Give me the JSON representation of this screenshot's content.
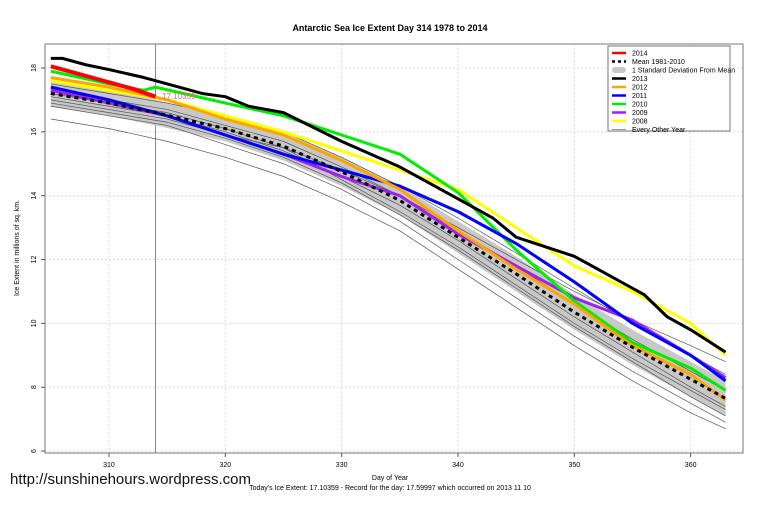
{
  "watermark": "http://sunshinehours.wordpress.com",
  "chart_data": {
    "type": "line",
    "title": "Antarctic Sea Ice Extent Day 314 1978 to 2014",
    "xlabel": "Day of Year",
    "ylabel": "Ice Extent in millions of sq. km.",
    "subtitle": "Today's Ice Extent: 17.10359  - Record for the day: 17.59997 which occurred on 2013 11 10",
    "xlim": [
      304.5,
      364.5
    ],
    "ylim": [
      5.94,
      18.75
    ],
    "xticks": [
      310,
      320,
      330,
      340,
      350,
      360
    ],
    "yticks": [
      6,
      8,
      10,
      12,
      14,
      16,
      18
    ],
    "grid": true,
    "legend_placement": "top-right",
    "current_day": 314,
    "current_value_label": "17.10359",
    "std_band": {
      "name": "1 Standard Deviation From Mean",
      "color": "#c8c8c8",
      "x": [
        305,
        310,
        314,
        320,
        325,
        330,
        335,
        340,
        345,
        350,
        355,
        360,
        363
      ],
      "lower": [
        16.8,
        16.5,
        16.2,
        15.7,
        15.1,
        14.3,
        13.4,
        12.2,
        11.0,
        9.8,
        8.7,
        7.7,
        7.1
      ],
      "upper": [
        17.6,
        17.3,
        17.0,
        16.5,
        16.0,
        15.2,
        14.3,
        13.2,
        12.1,
        10.9,
        9.8,
        8.8,
        8.2
      ]
    },
    "series": [
      {
        "name": "2014",
        "color": "#ff0000",
        "width": 4,
        "x": [
          305,
          307,
          310,
          312,
          314
        ],
        "values": [
          18.05,
          17.85,
          17.55,
          17.35,
          17.1
        ]
      },
      {
        "name": "Mean 1981-2010",
        "color": "#000000",
        "width": 3,
        "dash": true,
        "x": [
          305,
          310,
          314,
          320,
          325,
          330,
          335,
          340,
          345,
          350,
          355,
          360,
          363
        ],
        "values": [
          17.2,
          16.9,
          16.6,
          16.1,
          15.55,
          14.75,
          13.85,
          12.7,
          11.55,
          10.35,
          9.25,
          8.25,
          7.65
        ]
      },
      {
        "name": "2013",
        "color": "#000000",
        "width": 3,
        "x": [
          305,
          306,
          308,
          310,
          313,
          316,
          318,
          320,
          322,
          325,
          330,
          335,
          340,
          343,
          345,
          350,
          353,
          356,
          358,
          360,
          363
        ],
        "values": [
          18.3,
          18.3,
          18.1,
          17.95,
          17.7,
          17.4,
          17.2,
          17.1,
          16.8,
          16.6,
          15.7,
          14.9,
          13.9,
          13.3,
          12.7,
          12.1,
          11.5,
          10.9,
          10.2,
          9.8,
          9.1
        ]
      },
      {
        "name": "2012",
        "color": "#ffa500",
        "width": 3,
        "x": [
          305,
          310,
          315,
          320,
          325,
          330,
          335,
          340,
          345,
          350,
          355,
          360,
          363
        ],
        "values": [
          17.7,
          17.4,
          17.0,
          16.4,
          15.9,
          15.1,
          14.2,
          12.9,
          11.7,
          10.6,
          9.3,
          8.4,
          7.6
        ]
      },
      {
        "name": "2011",
        "color": "#0000ff",
        "width": 3,
        "x": [
          305,
          310,
          315,
          320,
          325,
          330,
          335,
          340,
          345,
          350,
          355,
          360,
          363
        ],
        "values": [
          17.4,
          17.0,
          16.5,
          15.9,
          15.3,
          14.8,
          14.3,
          13.5,
          12.5,
          11.3,
          10.0,
          9.0,
          8.2
        ]
      },
      {
        "name": "2010",
        "color": "#00ee00",
        "width": 3,
        "x": [
          305,
          310,
          313,
          314,
          320,
          325,
          330,
          335,
          340,
          345,
          350,
          355,
          360,
          363
        ],
        "values": [
          17.9,
          17.5,
          17.3,
          17.4,
          16.9,
          16.5,
          15.9,
          15.3,
          14.1,
          12.3,
          10.7,
          9.4,
          8.6,
          7.9
        ]
      },
      {
        "name": "2009",
        "color": "#a020f0",
        "width": 3,
        "x": [
          305,
          310,
          315,
          320,
          325,
          330,
          335,
          340,
          345,
          350,
          355,
          360,
          363
        ],
        "values": [
          17.3,
          16.9,
          16.5,
          15.9,
          15.3,
          14.6,
          14.0,
          12.8,
          11.8,
          10.8,
          10.1,
          9.0,
          8.3
        ]
      },
      {
        "name": "2008",
        "color": "#ffff00",
        "width": 3,
        "x": [
          305,
          310,
          315,
          320,
          325,
          330,
          335,
          340,
          345,
          350,
          355,
          360,
          363
        ],
        "values": [
          17.6,
          17.3,
          17.0,
          16.5,
          16.0,
          15.4,
          14.8,
          14.2,
          13.0,
          11.8,
          11.0,
          10.0,
          9.0
        ]
      }
    ],
    "other_years": {
      "name": "Every Other Year",
      "color": "#555555",
      "x": [
        305,
        310,
        315,
        320,
        325,
        330,
        335,
        340,
        345,
        350,
        355,
        360,
        363
      ],
      "lines": [
        [
          16.4,
          16.1,
          15.7,
          15.2,
          14.6,
          13.8,
          12.9,
          11.7,
          10.5,
          9.3,
          8.2,
          7.2,
          6.7
        ],
        [
          16.9,
          16.6,
          16.3,
          15.8,
          15.2,
          14.4,
          13.4,
          12.3,
          11.1,
          9.9,
          8.8,
          7.7,
          7.1
        ],
        [
          17.1,
          16.8,
          16.5,
          16.0,
          15.4,
          14.6,
          13.7,
          12.6,
          11.4,
          10.2,
          9.1,
          8.0,
          7.4
        ],
        [
          17.3,
          17.0,
          16.7,
          16.2,
          15.7,
          14.9,
          14.0,
          12.9,
          11.8,
          10.6,
          9.5,
          8.5,
          7.9
        ],
        [
          17.5,
          17.2,
          16.9,
          16.5,
          16.0,
          15.2,
          14.3,
          13.3,
          12.2,
          11.1,
          10.0,
          9.0,
          8.4
        ],
        [
          17.0,
          16.7,
          16.4,
          15.9,
          15.5,
          14.8,
          14.0,
          13.0,
          12.0,
          11.0,
          10.1,
          9.3,
          8.8
        ],
        [
          17.2,
          16.9,
          16.6,
          16.1,
          15.5,
          14.5,
          13.5,
          12.4,
          11.2,
          10.0,
          8.9,
          7.9,
          7.3
        ],
        [
          16.8,
          16.5,
          16.2,
          15.6,
          15.0,
          14.2,
          13.2,
          12.0,
          10.8,
          9.6,
          8.5,
          7.5,
          6.9
        ]
      ]
    }
  }
}
